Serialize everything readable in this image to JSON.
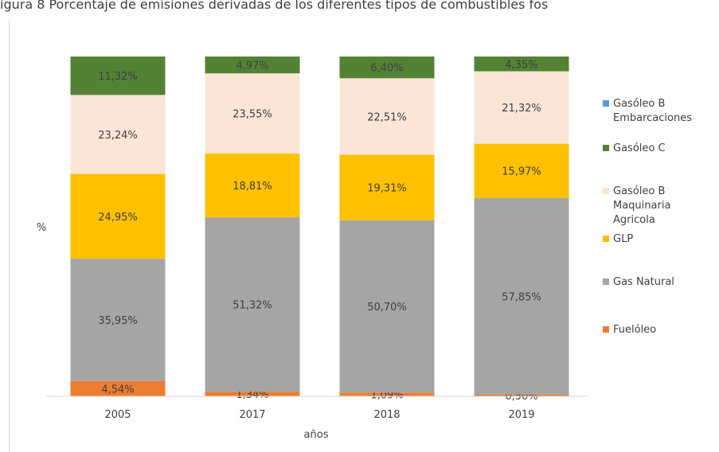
{
  "page": {
    "title": "igura 8 Porcentaje de emisiones derivadas de los diferentes tipos de combustibles fos"
  },
  "chart_data": {
    "type": "bar",
    "stacked": true,
    "percent_stacked": true,
    "title": "",
    "xlabel": "años",
    "ylabel": "%",
    "categories": [
      "2005",
      "2017",
      "2018",
      "2019"
    ],
    "series": [
      {
        "name": "Fuelóleo",
        "color": "#ed7d31",
        "values": [
          4.54,
          1.34,
          1.09,
          0.5
        ],
        "labels": [
          "4,54%",
          "1,34%",
          "1,09%",
          "0,50%"
        ]
      },
      {
        "name": "Gas Natural",
        "color": "#a5a5a5",
        "values": [
          35.95,
          51.32,
          50.7,
          57.85
        ],
        "labels": [
          "35,95%",
          "51,32%",
          "50,70%",
          "57,85%"
        ]
      },
      {
        "name": "GLP",
        "color": "#ffc000",
        "values": [
          24.95,
          18.81,
          19.31,
          15.97
        ],
        "labels": [
          "24,95%",
          "18,81%",
          "19,31%",
          "15,97%"
        ]
      },
      {
        "name": "Gasóleo B Maquinaria Agricola",
        "color": "#fbe5d6",
        "values": [
          23.24,
          23.55,
          22.51,
          21.32
        ],
        "labels": [
          "23,24%",
          "23,55%",
          "22,51%",
          "21,32%"
        ]
      },
      {
        "name": "Gasóleo C",
        "color": "#548235",
        "values": [
          11.32,
          4.97,
          6.4,
          4.35
        ],
        "labels": [
          "11,32%",
          "4,97%",
          "6,40%",
          "4,35%"
        ]
      },
      {
        "name": "Gasóleo B Embarcaciones",
        "color": "#5b9bd5",
        "values": [
          0,
          0,
          0,
          0
        ],
        "labels": [
          "",
          "",
          "",
          ""
        ]
      }
    ],
    "legend": {
      "position": "right",
      "order": [
        5,
        4,
        3,
        2,
        1,
        0
      ],
      "entries": [
        {
          "lines": [
            "Gasóleo B",
            "Embarcaciones"
          ]
        },
        {
          "lines": [
            "Gasóleo C"
          ]
        },
        {
          "lines": [
            "Gasóleo B",
            "Maquinaria",
            "Agricola"
          ]
        },
        {
          "lines": [
            "GLP"
          ]
        },
        {
          "lines": [
            "Gas Natural"
          ]
        },
        {
          "lines": [
            "Fuelóleo"
          ]
        }
      ]
    },
    "grid": false
  }
}
